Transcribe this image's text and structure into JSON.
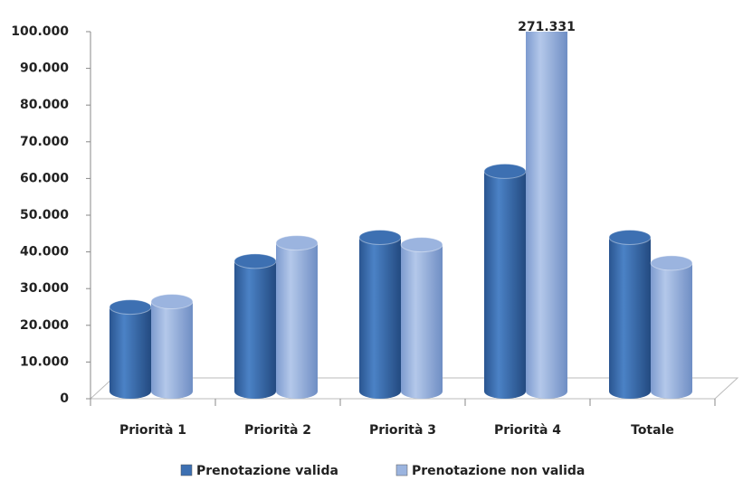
{
  "chart_data": {
    "type": "bar",
    "categories": [
      "Priorità 1",
      "Priorità 2",
      "Priorità 3",
      "Priorità 4",
      "Totale"
    ],
    "series": [
      {
        "name": "Prenotazione valida",
        "color": "#3d70b2",
        "values": [
          23000,
          35500,
          42000,
          60000,
          42000
        ]
      },
      {
        "name": "Prenotazione non valida",
        "color": "#9bb4df",
        "values": [
          24500,
          40500,
          40000,
          271331,
          35000
        ],
        "value_labels": [
          null,
          null,
          null,
          "271.331",
          null
        ]
      }
    ],
    "ylim": [
      0,
      100000
    ],
    "yticks": [
      0,
      {
        "value": 10000,
        "label": "10.000"
      },
      {
        "value": 20000,
        "label": "20.000"
      },
      {
        "value": 30000,
        "label": "30.000"
      },
      {
        "value": 40000,
        "label": "40.000"
      },
      {
        "value": 50000,
        "label": "50.000"
      },
      {
        "value": 60000,
        "label": "60.000"
      },
      {
        "value": 70000,
        "label": "70.000"
      },
      {
        "value": 80000,
        "label": "80.000"
      },
      {
        "value": 90000,
        "label": "90.000"
      },
      {
        "value": 100000,
        "label": "100.000"
      }
    ],
    "legend": "bottom"
  }
}
